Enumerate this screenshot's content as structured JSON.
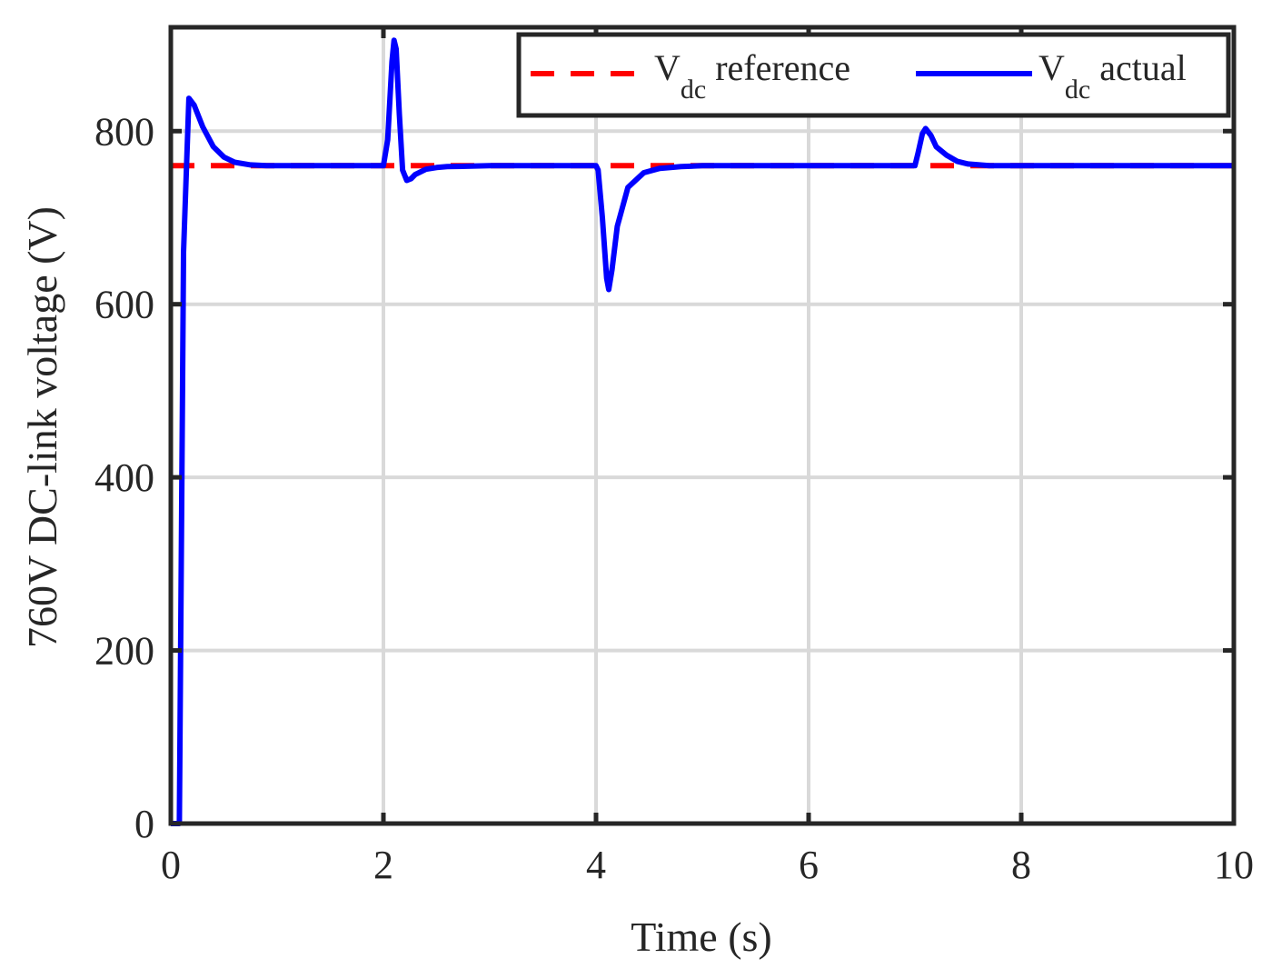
{
  "chart_data": {
    "type": "line",
    "xlabel": "Time (s)",
    "ylabel": "760V DC-link voltage (V)",
    "xlim": [
      0,
      10
    ],
    "ylim": [
      0,
      920
    ],
    "xticks": [
      0,
      2,
      4,
      6,
      8,
      10
    ],
    "yticks": [
      0,
      200,
      400,
      600,
      800
    ],
    "grid": true,
    "legend": {
      "placement": "top-right",
      "entries": [
        {
          "main": "V",
          "sub": "dc",
          "rest": " reference"
        },
        {
          "main": "V",
          "sub": "dc",
          "rest": " actual"
        }
      ]
    },
    "series": [
      {
        "name": "Vdc reference",
        "color": "#ff0000",
        "style": "dashed",
        "x": [
          0,
          10
        ],
        "y": [
          760,
          760
        ]
      },
      {
        "name": "Vdc actual",
        "color": "#0000ff",
        "style": "solid",
        "x": [
          0,
          0.08,
          0.12,
          0.17,
          0.22,
          0.3,
          0.4,
          0.5,
          0.6,
          0.75,
          0.9,
          1.2,
          2.0,
          2.04,
          2.08,
          2.1,
          2.12,
          2.15,
          2.18,
          2.22,
          2.26,
          2.3,
          2.4,
          2.5,
          2.6,
          3.0,
          4.0,
          4.02,
          4.06,
          4.1,
          4.12,
          4.15,
          4.2,
          4.3,
          4.45,
          4.6,
          4.8,
          5.0,
          7.0,
          7.03,
          7.07,
          7.1,
          7.15,
          7.2,
          7.3,
          7.4,
          7.5,
          7.7,
          8.0,
          10.0
        ],
        "y": [
          0,
          0,
          660,
          838,
          830,
          805,
          782,
          770,
          764,
          761,
          760,
          760,
          760,
          790,
          880,
          905,
          895,
          820,
          755,
          743,
          745,
          750,
          756,
          758,
          759,
          760,
          760,
          755,
          700,
          630,
          617,
          640,
          690,
          735,
          752,
          757,
          759,
          760,
          760,
          775,
          797,
          803,
          795,
          782,
          772,
          765,
          762,
          760,
          760,
          760
        ]
      }
    ]
  }
}
